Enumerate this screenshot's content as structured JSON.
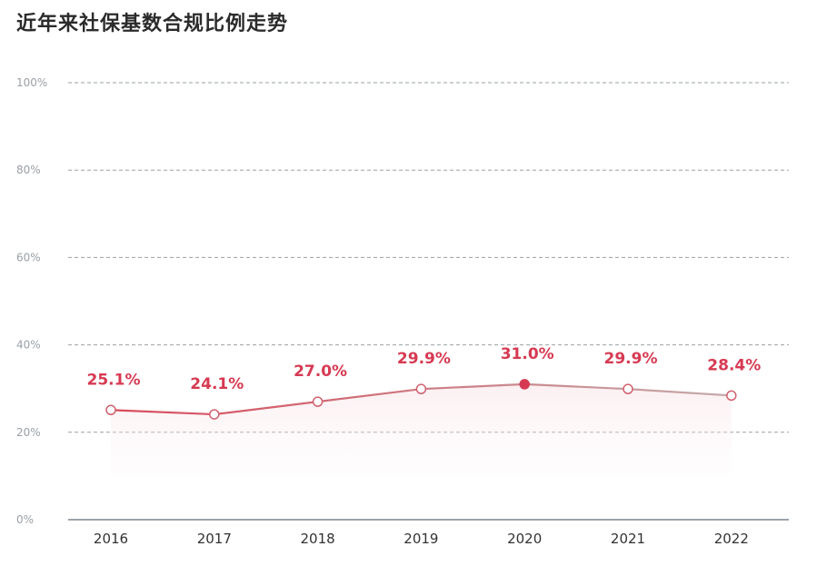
{
  "chart_data": {
    "type": "line",
    "title": "近年来社保基数合规比例走势",
    "categories": [
      "2016",
      "2017",
      "2018",
      "2019",
      "2020",
      "2021",
      "2022"
    ],
    "series": [
      {
        "values": [
          25.1,
          24.1,
          27.0,
          29.9,
          31.0,
          29.9,
          28.4
        ]
      }
    ],
    "data_labels": [
      "25.1%",
      "24.1%",
      "27.0%",
      "29.9%",
      "31.0%",
      "29.9%",
      "28.4%"
    ],
    "y_ticks": [
      "0%",
      "20%",
      "40%",
      "60%",
      "80%",
      "100%"
    ],
    "ylim": [
      0,
      100
    ],
    "grid": true,
    "highlight": "2020",
    "colors": {
      "line_start": "#d84a5a",
      "line_end": "#c4aaaa",
      "label": "#d63a52",
      "grid": "#9aa0a6",
      "axis": "#7d8790"
    }
  }
}
